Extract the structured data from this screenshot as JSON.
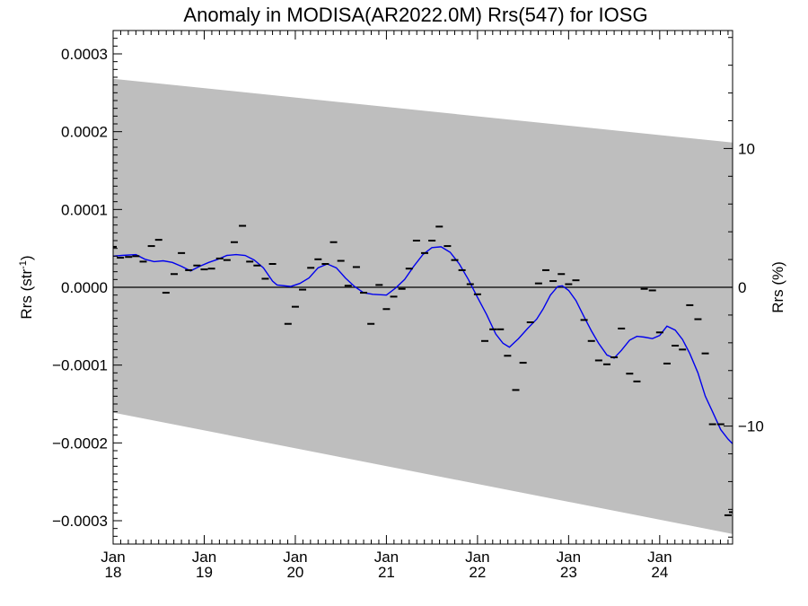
{
  "chart_data": {
    "type": "line",
    "title": "Anomaly in MODISA(AR2022.0M) Rrs(547) for IOSG",
    "ylabel_left": "Rrs (str",
    "ylabel_left_sup": "-1",
    "ylabel_left_close": ")",
    "ylabel_right": "Rrs (%)",
    "xlim": [
      2018.0,
      2024.8
    ],
    "ylim": [
      -0.00033,
      0.00033
    ],
    "y2lim": [
      -18.5,
      18.5
    ],
    "x_ticks": [
      {
        "x": 2018,
        "month": "Jan",
        "year": "18"
      },
      {
        "x": 2019,
        "month": "Jan",
        "year": "19"
      },
      {
        "x": 2020,
        "month": "Jan",
        "year": "20"
      },
      {
        "x": 2021,
        "month": "Jan",
        "year": "21"
      },
      {
        "x": 2022,
        "month": "Jan",
        "year": "22"
      },
      {
        "x": 2023,
        "month": "Jan",
        "year": "23"
      },
      {
        "x": 2024,
        "month": "Jan",
        "year": "24"
      }
    ],
    "y_ticks": [
      {
        "value": 0.0003,
        "label": "0.0003"
      },
      {
        "value": 0.0002,
        "label": "0.0002"
      },
      {
        "value": 0.0001,
        "label": "0.0001"
      },
      {
        "value": 0.0,
        "label": "0.0000"
      },
      {
        "value": -0.0001,
        "label": "−0.0001"
      },
      {
        "value": -0.0002,
        "label": "−0.0002"
      },
      {
        "value": -0.0003,
        "label": "−0.0003"
      }
    ],
    "y2_ticks": [
      {
        "value": 10,
        "label": "10"
      },
      {
        "value": 0,
        "label": "0"
      },
      {
        "value": -10,
        "label": "−10"
      }
    ],
    "zero_line": true,
    "band": {
      "color": "#bebebe",
      "upper": [
        [
          2018.0,
          0.000268
        ],
        [
          2024.8,
          0.000186
        ]
      ],
      "lower": [
        [
          2018.0,
          -0.000161
        ],
        [
          2024.8,
          -0.000317
        ]
      ]
    },
    "series": [
      {
        "style": "marker",
        "color": "#000000",
        "points": [
          [
            2018.0,
            5.2e-05
          ],
          [
            2018.08,
            3.8e-05
          ],
          [
            2018.17,
            3.9e-05
          ],
          [
            2018.25,
            4e-05
          ],
          [
            2018.33,
            3.3e-05
          ],
          [
            2018.42,
            5.3e-05
          ],
          [
            2018.5,
            6.1e-05
          ],
          [
            2018.58,
            -7e-06
          ],
          [
            2018.67,
            1.7e-05
          ],
          [
            2018.75,
            4.4e-05
          ],
          [
            2018.83,
            2.2e-05
          ],
          [
            2018.92,
            2.8e-05
          ],
          [
            2019.0,
            2.3e-05
          ],
          [
            2019.08,
            2.4e-05
          ],
          [
            2019.17,
            3.7e-05
          ],
          [
            2019.25,
            3.5e-05
          ],
          [
            2019.33,
            5.8e-05
          ],
          [
            2019.42,
            7.9e-05
          ],
          [
            2019.5,
            3.3e-05
          ],
          [
            2019.58,
            2.8e-05
          ],
          [
            2019.67,
            1.1e-05
          ],
          [
            2019.75,
            3e-05
          ],
          [
            2019.92,
            -4.7e-05
          ],
          [
            2020.0,
            -2.5e-05
          ],
          [
            2020.08,
            -3e-06
          ],
          [
            2020.17,
            2.5e-05
          ],
          [
            2020.25,
            3.6e-05
          ],
          [
            2020.33,
            3e-05
          ],
          [
            2020.42,
            5.8e-05
          ],
          [
            2020.5,
            3.4e-05
          ],
          [
            2020.58,
            2e-06
          ],
          [
            2020.67,
            2.6e-05
          ],
          [
            2020.75,
            -7e-06
          ],
          [
            2020.83,
            -4.7e-05
          ],
          [
            2020.92,
            3e-06
          ],
          [
            2021.0,
            -2.8e-05
          ],
          [
            2021.08,
            -1.2e-05
          ],
          [
            2021.17,
            -2e-06
          ],
          [
            2021.25,
            2.4e-05
          ],
          [
            2021.33,
            6e-05
          ],
          [
            2021.42,
            4.4e-05
          ],
          [
            2021.5,
            6e-05
          ],
          [
            2021.58,
            7.8e-05
          ],
          [
            2021.67,
            5.3e-05
          ],
          [
            2021.75,
            3.5e-05
          ],
          [
            2021.83,
            2.2e-05
          ],
          [
            2021.92,
            4e-06
          ],
          [
            2022.0,
            -9e-06
          ],
          [
            2022.08,
            -6.9e-05
          ],
          [
            2022.17,
            -5.4e-05
          ],
          [
            2022.25,
            -5.4e-05
          ],
          [
            2022.33,
            -8.8e-05
          ],
          [
            2022.42,
            -0.000132
          ],
          [
            2022.5,
            -9.7e-05
          ],
          [
            2022.58,
            -4.5e-05
          ],
          [
            2022.67,
            5e-06
          ],
          [
            2022.75,
            2.2e-05
          ],
          [
            2022.83,
            8e-06
          ],
          [
            2022.92,
            1.7e-05
          ],
          [
            2023.0,
            4e-06
          ],
          [
            2023.08,
            9e-06
          ],
          [
            2023.17,
            -4.2e-05
          ],
          [
            2023.25,
            -6.9e-05
          ],
          [
            2023.33,
            -9.4e-05
          ],
          [
            2023.42,
            -9.9e-05
          ],
          [
            2023.5,
            -9e-05
          ],
          [
            2023.58,
            -5.3e-05
          ],
          [
            2023.67,
            -0.000111
          ],
          [
            2023.75,
            -0.000121
          ],
          [
            2023.83,
            -2e-06
          ],
          [
            2023.92,
            -4e-06
          ],
          [
            2024.0,
            -5.8e-05
          ],
          [
            2024.08,
            -9.8e-05
          ],
          [
            2024.17,
            -7.5e-05
          ],
          [
            2024.25,
            -8e-05
          ],
          [
            2024.33,
            -2.3e-05
          ],
          [
            2024.42,
            -4.1e-05
          ],
          [
            2024.5,
            -8.5e-05
          ],
          [
            2024.58,
            -0.000176
          ],
          [
            2024.67,
            -0.000176
          ],
          [
            2024.75,
            -0.000293
          ],
          [
            2024.8,
            -0.000289
          ]
        ]
      },
      {
        "style": "line",
        "color": "#0000ee",
        "points": [
          [
            2018.0,
            4e-05
          ],
          [
            2018.1,
            4.1e-05
          ],
          [
            2018.25,
            4.2e-05
          ],
          [
            2018.35,
            3.6e-05
          ],
          [
            2018.45,
            3.3e-05
          ],
          [
            2018.55,
            3.4e-05
          ],
          [
            2018.65,
            3.2e-05
          ],
          [
            2018.75,
            2.7e-05
          ],
          [
            2018.85,
            2.1e-05
          ],
          [
            2018.95,
            2.7e-05
          ],
          [
            2019.05,
            3.2e-05
          ],
          [
            2019.15,
            3.6e-05
          ],
          [
            2019.25,
            4.1e-05
          ],
          [
            2019.35,
            4.2e-05
          ],
          [
            2019.45,
            4.1e-05
          ],
          [
            2019.55,
            3.5e-05
          ],
          [
            2019.65,
            2.5e-05
          ],
          [
            2019.75,
            8e-06
          ],
          [
            2019.8,
            3e-06
          ],
          [
            2019.95,
            1e-06
          ],
          [
            2020.05,
            5e-06
          ],
          [
            2020.15,
            1.2e-05
          ],
          [
            2020.25,
            2.5e-05
          ],
          [
            2020.35,
            3e-05
          ],
          [
            2020.45,
            2.5e-05
          ],
          [
            2020.55,
            1.2e-05
          ],
          [
            2020.65,
            1e-06
          ],
          [
            2020.75,
            -7e-06
          ],
          [
            2020.85,
            -9e-06
          ],
          [
            2021.0,
            -1e-05
          ],
          [
            2021.1,
            -1e-06
          ],
          [
            2021.2,
            1e-05
          ],
          [
            2021.3,
            2.7e-05
          ],
          [
            2021.4,
            4.2e-05
          ],
          [
            2021.5,
            5.1e-05
          ],
          [
            2021.6,
            5.2e-05
          ],
          [
            2021.7,
            4.5e-05
          ],
          [
            2021.8,
            3e-05
          ],
          [
            2021.9,
            1e-05
          ],
          [
            2022.0,
            -1.3e-05
          ],
          [
            2022.1,
            -3.5e-05
          ],
          [
            2022.2,
            -6e-05
          ],
          [
            2022.28,
            -7.2e-05
          ],
          [
            2022.35,
            -7.7e-05
          ],
          [
            2022.45,
            -6.6e-05
          ],
          [
            2022.55,
            -5.3e-05
          ],
          [
            2022.65,
            -4.1e-05
          ],
          [
            2022.72,
            -2.8e-05
          ],
          [
            2022.8,
            -1e-05
          ],
          [
            2022.88,
            1e-06
          ],
          [
            2022.93,
            2e-06
          ],
          [
            2023.0,
            -4e-06
          ],
          [
            2023.08,
            -1.7e-05
          ],
          [
            2023.17,
            -3.8e-05
          ],
          [
            2023.25,
            -5.6e-05
          ],
          [
            2023.33,
            -7.2e-05
          ],
          [
            2023.42,
            -8.7e-05
          ],
          [
            2023.5,
            -9.1e-05
          ],
          [
            2023.58,
            -8.1e-05
          ],
          [
            2023.67,
            -6.8e-05
          ],
          [
            2023.75,
            -6.3e-05
          ],
          [
            2023.83,
            -6.4e-05
          ],
          [
            2023.92,
            -6.6e-05
          ],
          [
            2024.0,
            -6.2e-05
          ],
          [
            2024.08,
            -5e-05
          ],
          [
            2024.17,
            -5.5e-05
          ],
          [
            2024.25,
            -6.7e-05
          ],
          [
            2024.33,
            -8.5e-05
          ],
          [
            2024.42,
            -0.00011
          ],
          [
            2024.5,
            -0.00014
          ],
          [
            2024.58,
            -0.00016
          ],
          [
            2024.67,
            -0.000183
          ],
          [
            2024.75,
            -0.000195
          ],
          [
            2024.8,
            -0.000201
          ]
        ]
      }
    ]
  }
}
